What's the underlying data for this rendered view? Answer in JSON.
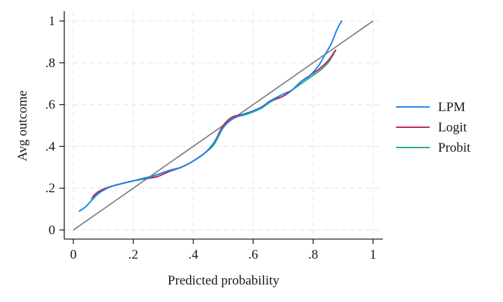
{
  "chart_data": {
    "type": "line",
    "title": "",
    "xlabel": "Predicted probability",
    "ylabel": "Avg outcome",
    "xlim": [
      0,
      1
    ],
    "ylim": [
      0,
      1
    ],
    "xticks": [
      {
        "value": 0,
        "label": "0"
      },
      {
        "value": 0.2,
        "label": ".2"
      },
      {
        "value": 0.4,
        "label": ".4"
      },
      {
        "value": 0.6,
        "label": ".6"
      },
      {
        "value": 0.8,
        "label": ".8"
      },
      {
        "value": 1,
        "label": "1"
      }
    ],
    "yticks": [
      {
        "value": 0,
        "label": "0"
      },
      {
        "value": 0.2,
        "label": ".2"
      },
      {
        "value": 0.4,
        "label": ".4"
      },
      {
        "value": 0.6,
        "label": ".6"
      },
      {
        "value": 0.8,
        "label": ".8"
      },
      {
        "value": 1,
        "label": "1"
      }
    ],
    "grid": true,
    "legend_position": "right",
    "reference_line": {
      "points": [
        [
          0,
          0
        ],
        [
          1,
          1
        ]
      ],
      "color": "#808080"
    },
    "series": [
      {
        "name": "LPM",
        "color": "#1a85e8",
        "points": [
          [
            0.02,
            0.09
          ],
          [
            0.04,
            0.11
          ],
          [
            0.06,
            0.14
          ],
          [
            0.08,
            0.17
          ],
          [
            0.1,
            0.19
          ],
          [
            0.13,
            0.21
          ],
          [
            0.17,
            0.225
          ],
          [
            0.2,
            0.235
          ],
          [
            0.25,
            0.25
          ],
          [
            0.28,
            0.265
          ],
          [
            0.32,
            0.285
          ],
          [
            0.36,
            0.3
          ],
          [
            0.4,
            0.33
          ],
          [
            0.44,
            0.37
          ],
          [
            0.47,
            0.42
          ],
          [
            0.5,
            0.49
          ],
          [
            0.53,
            0.53
          ],
          [
            0.57,
            0.555
          ],
          [
            0.6,
            0.57
          ],
          [
            0.63,
            0.59
          ],
          [
            0.66,
            0.62
          ],
          [
            0.7,
            0.65
          ],
          [
            0.73,
            0.67
          ],
          [
            0.76,
            0.71
          ],
          [
            0.79,
            0.74
          ],
          [
            0.82,
            0.79
          ],
          [
            0.84,
            0.84
          ],
          [
            0.86,
            0.89
          ],
          [
            0.88,
            0.96
          ],
          [
            0.895,
            1.0
          ]
        ]
      },
      {
        "name": "Logit",
        "color": "#c0235e",
        "points": [
          [
            0.065,
            0.16
          ],
          [
            0.08,
            0.18
          ],
          [
            0.1,
            0.195
          ],
          [
            0.13,
            0.21
          ],
          [
            0.17,
            0.225
          ],
          [
            0.2,
            0.235
          ],
          [
            0.24,
            0.245
          ],
          [
            0.28,
            0.255
          ],
          [
            0.32,
            0.28
          ],
          [
            0.36,
            0.3
          ],
          [
            0.4,
            0.33
          ],
          [
            0.44,
            0.37
          ],
          [
            0.47,
            0.42
          ],
          [
            0.5,
            0.5
          ],
          [
            0.53,
            0.54
          ],
          [
            0.57,
            0.555
          ],
          [
            0.6,
            0.57
          ],
          [
            0.63,
            0.59
          ],
          [
            0.66,
            0.62
          ],
          [
            0.7,
            0.64
          ],
          [
            0.73,
            0.67
          ],
          [
            0.76,
            0.71
          ],
          [
            0.79,
            0.74
          ],
          [
            0.82,
            0.77
          ],
          [
            0.85,
            0.81
          ],
          [
            0.875,
            0.86
          ]
        ]
      },
      {
        "name": "Probit",
        "color": "#21b08a",
        "points": [
          [
            0.06,
            0.15
          ],
          [
            0.08,
            0.175
          ],
          [
            0.1,
            0.195
          ],
          [
            0.13,
            0.21
          ],
          [
            0.17,
            0.225
          ],
          [
            0.2,
            0.235
          ],
          [
            0.24,
            0.25
          ],
          [
            0.28,
            0.265
          ],
          [
            0.32,
            0.285
          ],
          [
            0.36,
            0.3
          ],
          [
            0.4,
            0.33
          ],
          [
            0.44,
            0.37
          ],
          [
            0.47,
            0.41
          ],
          [
            0.5,
            0.49
          ],
          [
            0.53,
            0.535
          ],
          [
            0.57,
            0.55
          ],
          [
            0.6,
            0.565
          ],
          [
            0.63,
            0.585
          ],
          [
            0.66,
            0.615
          ],
          [
            0.7,
            0.64
          ],
          [
            0.73,
            0.67
          ],
          [
            0.76,
            0.7
          ],
          [
            0.79,
            0.73
          ],
          [
            0.82,
            0.76
          ],
          [
            0.85,
            0.8
          ],
          [
            0.875,
            0.86
          ]
        ]
      }
    ]
  }
}
